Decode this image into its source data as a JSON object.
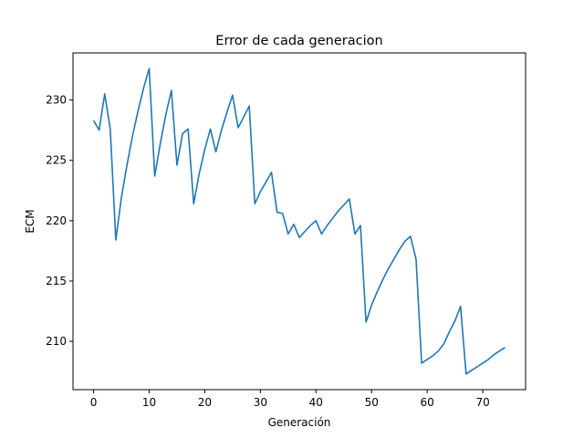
{
  "chart_data": {
    "type": "line",
    "title": "Error de cada generacion",
    "xlabel": "Generación",
    "ylabel": "ECM",
    "xlim": [
      -3.7,
      77.7
    ],
    "ylim": [
      206.0,
      233.9
    ],
    "xticks": [
      0,
      10,
      20,
      30,
      40,
      50,
      60,
      70
    ],
    "yticks": [
      210,
      215,
      220,
      225,
      230
    ],
    "grid": false,
    "legend": "none",
    "series": [
      {
        "color": "#1f77b4",
        "x": [
          0,
          1,
          2,
          3,
          4,
          5,
          6,
          7,
          8,
          9,
          10,
          11,
          12,
          13,
          14,
          15,
          16,
          17,
          18,
          19,
          20,
          21,
          22,
          23,
          24,
          25,
          26,
          27,
          28,
          29,
          30,
          31,
          32,
          33,
          34,
          35,
          36,
          37,
          38,
          39,
          40,
          41,
          42,
          43,
          44,
          45,
          46,
          47,
          48,
          49,
          50,
          51,
          52,
          53,
          54,
          55,
          56,
          57,
          58,
          59,
          60,
          61,
          62,
          63,
          64,
          65,
          66,
          67,
          68,
          69,
          70,
          71,
          72,
          73,
          74
        ],
        "y": [
          228.3,
          227.5,
          230.5,
          227.6,
          218.4,
          221.9,
          224.6,
          227.0,
          229.1,
          231.0,
          232.6,
          223.7,
          226.4,
          228.8,
          230.8,
          224.6,
          227.2,
          227.6,
          221.4,
          223.9,
          225.9,
          227.6,
          225.7,
          227.5,
          229.0,
          230.4,
          227.7,
          228.6,
          229.5,
          221.4,
          222.4,
          223.2,
          224.0,
          220.7,
          220.6,
          218.9,
          219.7,
          218.6,
          219.1,
          219.6,
          220.0,
          218.9,
          219.6,
          220.2,
          220.8,
          221.3,
          221.8,
          218.9,
          219.6,
          211.6,
          213.0,
          214.1,
          215.1,
          216.0,
          216.8,
          217.6,
          218.3,
          218.7,
          216.8,
          208.2,
          208.5,
          208.8,
          209.2,
          209.8,
          210.8,
          211.7,
          212.9,
          207.3,
          207.6,
          207.9,
          208.2,
          208.5,
          208.9,
          209.2,
          209.5
        ]
      }
    ]
  }
}
